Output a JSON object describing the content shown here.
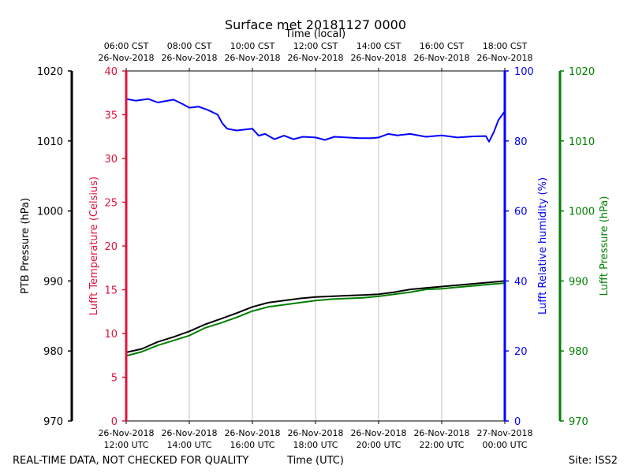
{
  "chart_data": {
    "type": "line",
    "title": "Surface met 20181127 0000",
    "top_axis_label": "Time (local)",
    "xlabel": "Time (UTC)",
    "footer_left": "REAL-TIME DATA, NOT CHECKED FOR QUALITY",
    "footer_right": "Site: ISS2",
    "x_unit": "hours since 26-Nov-2018 12:00 UTC",
    "xlim": [
      0,
      12
    ],
    "grid": true,
    "bottom_ticks": [
      {
        "x": 0,
        "line1": "26-Nov-2018",
        "line2": "12:00 UTC"
      },
      {
        "x": 2,
        "line1": "26-Nov-2018",
        "line2": "14:00 UTC"
      },
      {
        "x": 4,
        "line1": "26-Nov-2018",
        "line2": "16:00 UTC"
      },
      {
        "x": 6,
        "line1": "26-Nov-2018",
        "line2": "18:00 UTC"
      },
      {
        "x": 8,
        "line1": "26-Nov-2018",
        "line2": "20:00 UTC"
      },
      {
        "x": 10,
        "line1": "26-Nov-2018",
        "line2": "22:00 UTC"
      },
      {
        "x": 12,
        "line1": "27-Nov-2018",
        "line2": "00:00 UTC"
      }
    ],
    "top_ticks": [
      {
        "x": 0,
        "line1": "06:00 CST",
        "line2": "26-Nov-2018"
      },
      {
        "x": 2,
        "line1": "08:00 CST",
        "line2": "26-Nov-2018"
      },
      {
        "x": 4,
        "line1": "10:00 CST",
        "line2": "26-Nov-2018"
      },
      {
        "x": 6,
        "line1": "12:00 CST",
        "line2": "26-Nov-2018"
      },
      {
        "x": 8,
        "line1": "14:00 CST",
        "line2": "26-Nov-2018"
      },
      {
        "x": 10,
        "line1": "16:00 CST",
        "line2": "26-Nov-2018"
      },
      {
        "x": 12,
        "line1": "18:00 CST",
        "line2": "26-Nov-2018"
      }
    ],
    "axes": {
      "ptb_pressure": {
        "label": "PTB Pressure (hPa)",
        "color": "#000000",
        "ylim": [
          970,
          1020
        ],
        "ticks": [
          970,
          980,
          990,
          1000,
          1010,
          1020
        ]
      },
      "temperature": {
        "label": "Lufft Temperature (Celsius)",
        "color": "#dc143c",
        "ylim": [
          0,
          40
        ],
        "ticks": [
          0,
          5,
          10,
          15,
          20,
          25,
          30,
          35,
          40
        ]
      },
      "humidity": {
        "label": "Lufft Relative humidity (%)",
        "color": "#0000ff",
        "ylim": [
          0,
          100
        ],
        "ticks": [
          0,
          20,
          40,
          60,
          80,
          100
        ]
      },
      "lufft_pressure": {
        "label": "Lufft Pressure (hPa)",
        "color": "#008000",
        "ylim": [
          970,
          1020
        ],
        "ticks": [
          970,
          980,
          990,
          1000,
          1010,
          1020
        ]
      }
    },
    "series": [
      {
        "name": "PTB Pressure",
        "axis": "ptb_pressure",
        "color": "#000000",
        "x": [
          0,
          0.5,
          1,
          1.5,
          2,
          2.5,
          3,
          3.5,
          4,
          4.5,
          5,
          5.5,
          6,
          6.5,
          7,
          7.5,
          8,
          8.5,
          9,
          9.5,
          10,
          10.5,
          11,
          11.5,
          12
        ],
        "y": [
          979.8,
          980.3,
          981.3,
          982.0,
          982.8,
          983.8,
          984.6,
          985.4,
          986.3,
          986.9,
          987.2,
          987.5,
          987.7,
          987.8,
          987.9,
          988.0,
          988.1,
          988.4,
          988.8,
          989.0,
          989.2,
          989.4,
          989.6,
          989.8,
          990.0
        ]
      },
      {
        "name": "Lufft Pressure",
        "axis": "lufft_pressure",
        "color": "#008000",
        "x": [
          0,
          0.5,
          1,
          1.5,
          2,
          2.5,
          3,
          3.5,
          4,
          4.5,
          5,
          5.5,
          6,
          6.5,
          7,
          7.5,
          8,
          8.5,
          9,
          9.5,
          10,
          10.5,
          11,
          11.5,
          12
        ],
        "y": [
          979.3,
          979.9,
          980.8,
          981.5,
          982.2,
          983.3,
          984.0,
          984.8,
          985.7,
          986.3,
          986.6,
          986.9,
          987.2,
          987.4,
          987.5,
          987.6,
          987.8,
          988.1,
          988.4,
          988.8,
          988.9,
          989.1,
          989.3,
          989.5,
          989.7
        ]
      },
      {
        "name": "Lufft Relative humidity",
        "axis": "humidity",
        "color": "#0000ff",
        "x": [
          0,
          0.3,
          0.7,
          1.0,
          1.5,
          1.8,
          2.0,
          2.3,
          2.6,
          2.9,
          3.05,
          3.2,
          3.5,
          4.0,
          4.2,
          4.4,
          4.7,
          5.0,
          5.3,
          5.6,
          6.0,
          6.3,
          6.6,
          7.0,
          7.4,
          7.8,
          8.0,
          8.3,
          8.6,
          9.0,
          9.5,
          10.0,
          10.5,
          11.0,
          11.4,
          11.5,
          11.65,
          11.8,
          12.0
        ],
        "y": [
          92.0,
          91.5,
          92.0,
          91.0,
          91.8,
          90.5,
          89.5,
          89.8,
          88.8,
          87.5,
          85.0,
          83.5,
          83.0,
          83.5,
          81.5,
          82.0,
          80.5,
          81.5,
          80.5,
          81.2,
          81.0,
          80.3,
          81.2,
          81.0,
          80.8,
          80.8,
          81.0,
          82.0,
          81.6,
          82.0,
          81.2,
          81.6,
          81.0,
          81.3,
          81.4,
          79.8,
          82.5,
          86.0,
          88.5
        ]
      }
    ]
  }
}
